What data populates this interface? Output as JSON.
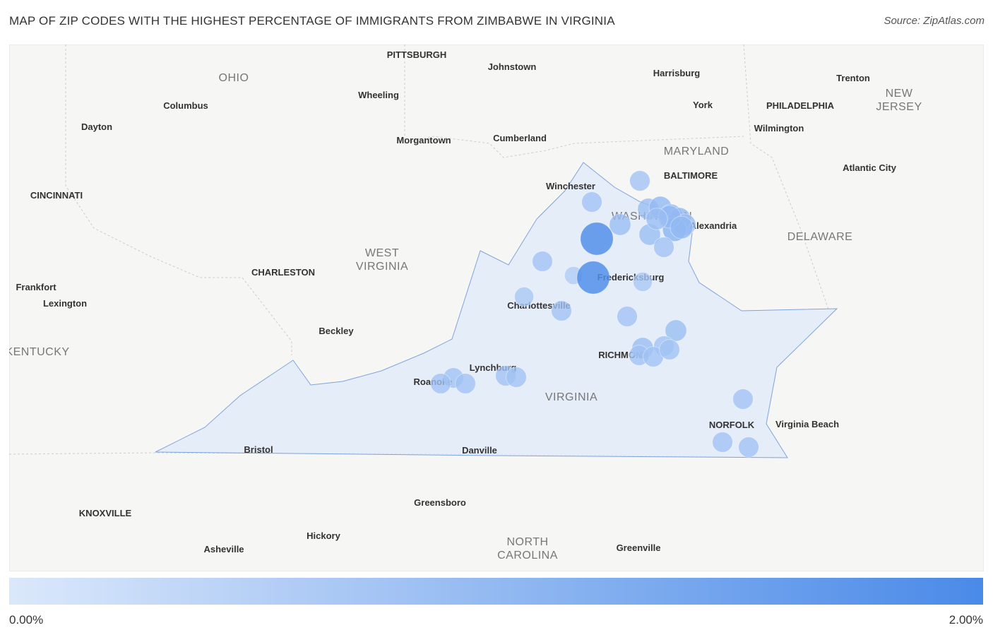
{
  "title": "MAP OF ZIP CODES WITH THE HIGHEST PERCENTAGE OF IMMIGRANTS FROM ZIMBABWE IN VIRGINIA",
  "source": "Source: ZipAtlas.com",
  "places": [
    "PITTSBURGH",
    "Johnstown",
    "OHIO",
    "Harrisburg",
    "Trenton",
    "NEW JERSEY",
    "Columbus",
    "Wheeling",
    "York",
    "PHILADELPHIA",
    "Dayton",
    "Wilmington",
    "Cumberland",
    "Morgantown",
    "MARYLAND",
    "BALTIMORE",
    "Atlantic City",
    "Winchester",
    "CINCINNATI",
    "WASHINGTON",
    "Alexandria",
    "DELAWARE",
    "WEST VIRGINIA",
    "CHARLESTON",
    "Fredericksburg",
    "Frankfort",
    "Charlottesville",
    "Lexington",
    "Beckley",
    "KENTUCKY",
    "RICHMOND",
    "Lynchburg",
    "Roanoke",
    "VIRGINIA",
    "NORFOLK",
    "Virginia Beach",
    "Bristol",
    "Danville",
    "Greensboro",
    "KNOXVILLE",
    "NORTH CAROLINA",
    "Hickory",
    "Asheville",
    "Greenville"
  ],
  "bubbles": [
    0.8,
    0.8,
    0.9,
    0.9,
    1.0,
    1.0,
    1.0,
    0.9,
    1.1,
    0.9,
    0.8,
    1.9,
    0.8,
    0.6,
    1.9,
    0.7,
    0.7,
    0.8,
    0.8,
    0.9,
    0.8,
    0.9,
    0.8,
    0.8,
    0.8,
    0.8,
    0.8,
    0.8,
    0.8,
    0.8,
    0.8,
    0.8,
    0.8,
    1.0,
    1.0,
    0.9
  ],
  "legend": {
    "min": {
      "value": 0,
      "label": "0.00%"
    },
    "max": {
      "value": 2,
      "label": "2.00%"
    }
  }
}
